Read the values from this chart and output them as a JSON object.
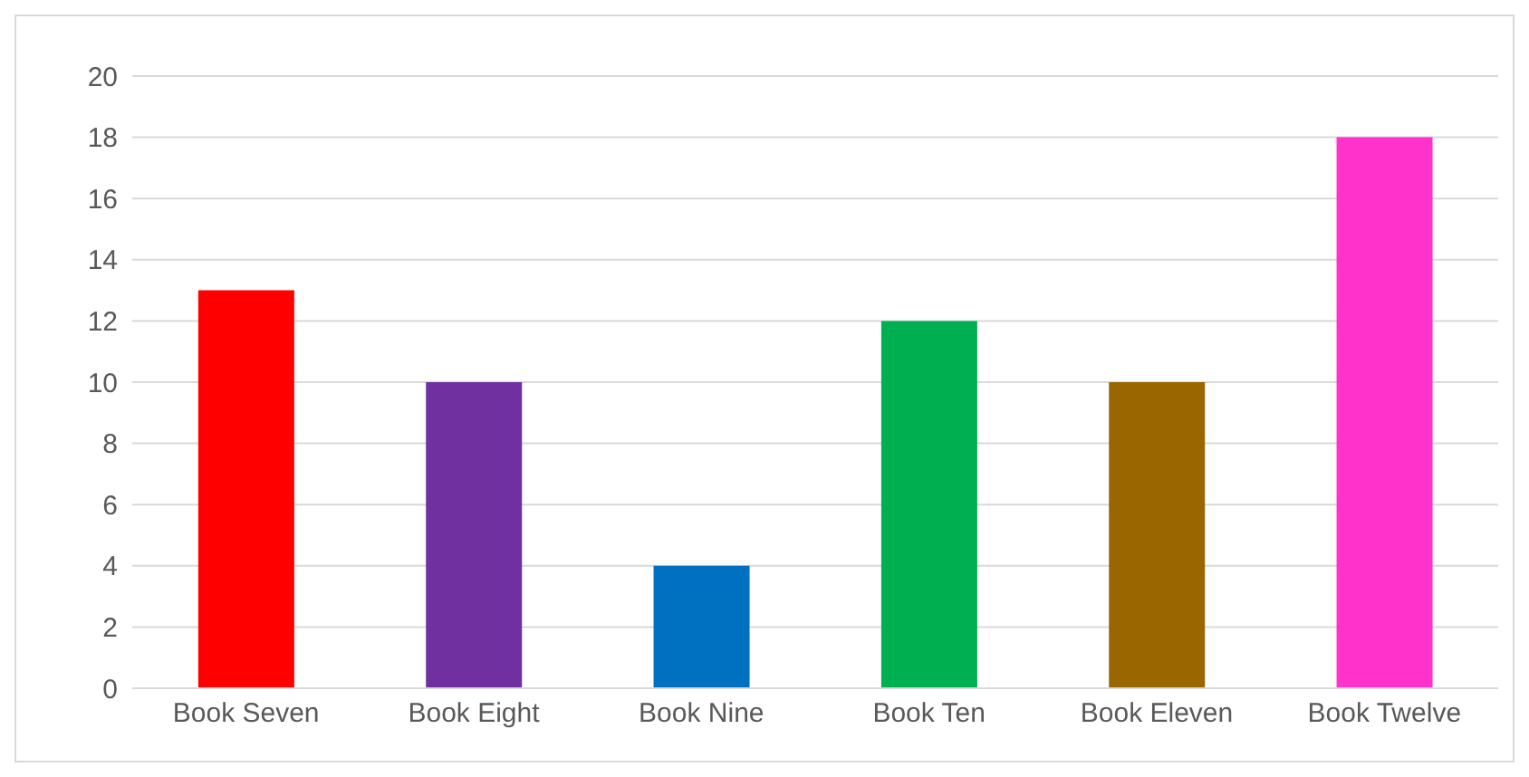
{
  "chart_data": {
    "type": "bar",
    "categories": [
      "Book Seven",
      "Book Eight",
      "Book Nine",
      "Book Ten",
      "Book Eleven",
      "Book Twelve"
    ],
    "values": [
      13,
      10,
      4,
      12,
      10,
      18
    ],
    "colors": [
      "#ff0000",
      "#7030a0",
      "#0070c0",
      "#00b050",
      "#996600",
      "#ff33cc"
    ],
    "ylim": [
      0,
      20
    ],
    "yticks": [
      0,
      2,
      4,
      6,
      8,
      10,
      12,
      14,
      16,
      18,
      20
    ],
    "grid": "y",
    "legend": false
  }
}
